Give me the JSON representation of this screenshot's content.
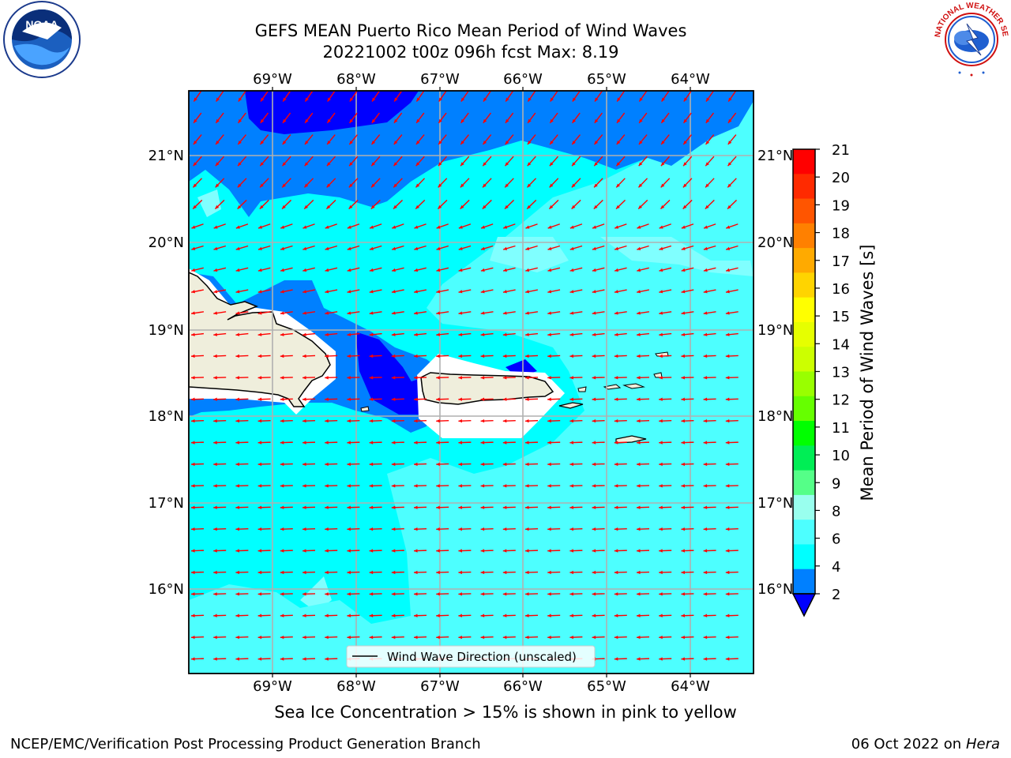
{
  "header": {
    "title_line1": "GEFS MEAN Puerto Rico Mean Period of Wind Waves",
    "title_line2": "20221002 t00z 096h fcst   Max: 8.19"
  },
  "logos": {
    "noaa_text": "NOAA",
    "nws_text": "NATIONAL WEATHER SERVICE"
  },
  "map": {
    "lon_labels": [
      "69°W",
      "68°W",
      "67°W",
      "66°W",
      "65°W",
      "64°W"
    ],
    "lat_labels": [
      "21°N",
      "20°N",
      "19°N",
      "18°N",
      "17°N",
      "16°N"
    ],
    "legend_label": "Wind Wave Direction (unscaled)",
    "colors": {
      "deep_blue": "#0000ff",
      "blue": "#0080ff",
      "cyan": "#00ffff",
      "light_cyan": "#4dffff",
      "pale_cyan": "#80ffff",
      "land": "#efeedc",
      "arrow": "#ff0000"
    }
  },
  "colorbar": {
    "label": "Mean Period of Wind Waves [s]",
    "ticks": [
      "21",
      "20",
      "19",
      "18",
      "17",
      "16",
      "15",
      "14",
      "13",
      "12",
      "11",
      "10",
      "9",
      "8",
      "6",
      "4",
      "2"
    ],
    "colors": [
      "#ff0000",
      "#ff2a00",
      "#ff5500",
      "#ff8000",
      "#ffaa00",
      "#ffd400",
      "#ffff00",
      "#e6ff00",
      "#ccff00",
      "#99ff00",
      "#66ff00",
      "#00ff00",
      "#00ee55",
      "#55ff88",
      "#99ffee",
      "#4dffff",
      "#00ffff",
      "#0080ff"
    ],
    "underflow_color": "#0000ff"
  },
  "subtitle": "Sea Ice Concentration > 15% is shown in pink to yellow",
  "footer": {
    "left": "NCEP/EMC/Verification Post Processing Product Generation Branch",
    "right_prefix": "06 Oct 2022 on ",
    "right_host": "Hera"
  }
}
